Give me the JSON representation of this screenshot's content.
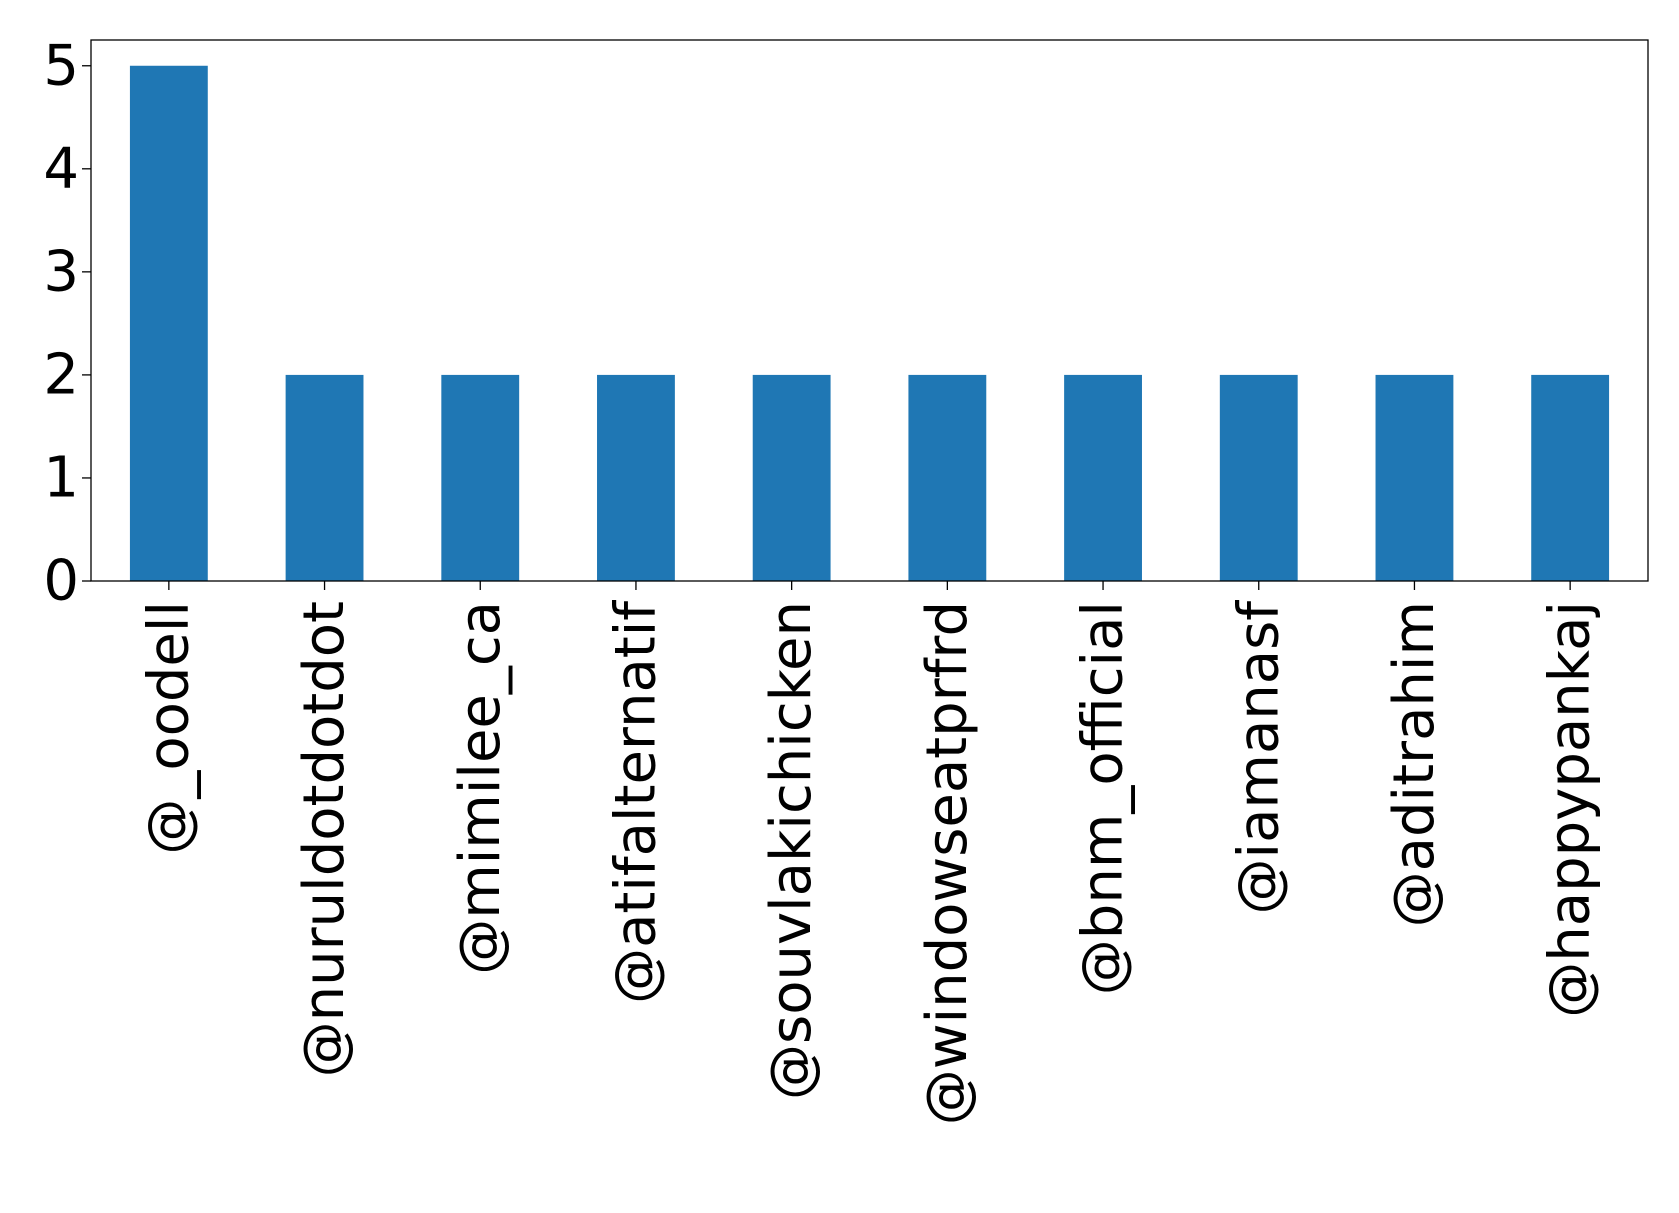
{
  "chart_data": {
    "type": "bar",
    "title": "",
    "xlabel": "",
    "ylabel": "",
    "categories": [
      "@_oodell",
      "@nuruldotdotdot",
      "@mimilee_ca",
      "@atifalternatif",
      "@souvlakichicken",
      "@windowseatprfrd",
      "@bnm_official",
      "@iamanasf",
      "@aditrahim",
      "@happypankaj"
    ],
    "values": [
      5,
      2,
      2,
      2,
      2,
      2,
      2,
      2,
      2,
      2
    ],
    "ylim": [
      0,
      5.25
    ],
    "yticks": [
      0,
      1,
      2,
      3,
      4,
      5
    ],
    "grid": false,
    "legend": "none",
    "colors": {
      "bar": "#1f77b4",
      "axis": "#000000",
      "text": "#000000"
    }
  }
}
